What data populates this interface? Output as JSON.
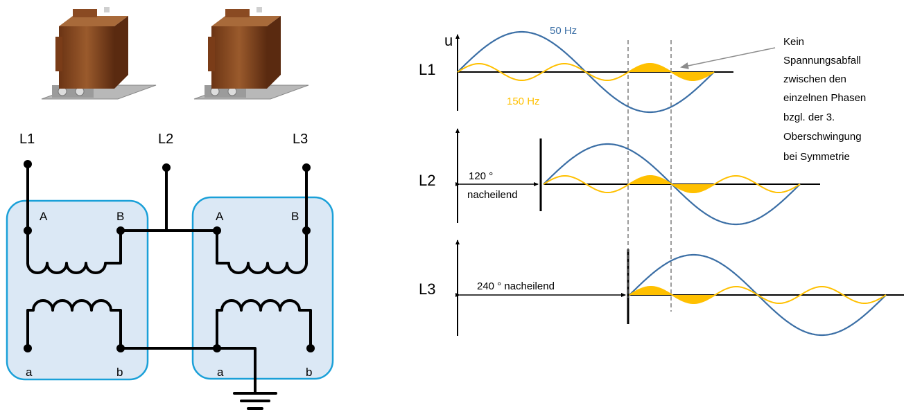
{
  "colors": {
    "fundamental": "#3a6ea5",
    "harmonic": "#ffc000",
    "harmonic_fill": "#ffc000",
    "core_box_fill": "#dbe8f5",
    "core_box_stroke": "#1aa0d8",
    "transformer_body": "#8a4a22"
  },
  "schematic": {
    "line_labels": [
      "L1",
      "L2",
      "L3"
    ],
    "left_transformer": {
      "primary": [
        "A",
        "B"
      ],
      "secondary": [
        "a",
        "b"
      ]
    },
    "right_transformer": {
      "primary": [
        "A",
        "B"
      ],
      "secondary": [
        "a",
        "b"
      ]
    },
    "icons": [
      "voltage-transformer-photo",
      "voltage-transformer-photo",
      "ground-symbol"
    ]
  },
  "waveforms": {
    "voltage_symbol": "u",
    "phase_labels": [
      "L1",
      "L2",
      "L3"
    ],
    "freq_fundamental": "50 Hz",
    "freq_harmonic": "150 Hz",
    "shift_l2": [
      "120 °",
      "nacheilend"
    ],
    "shift_l3": "240 ° nacheilend",
    "note_lines": [
      "Kein",
      "Spannungsabfall",
      "zwischen den",
      "einzelnen Phasen",
      "bzgl. der 3.",
      "Oberschwingung",
      "bei Symmetrie"
    ]
  }
}
